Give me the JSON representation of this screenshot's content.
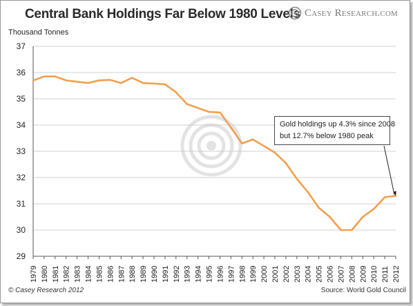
{
  "header": {
    "title": "Central Bank Holdings Far Below 1980 Levels",
    "brand": "Casey Research.com"
  },
  "footer": {
    "copyright": "© Casey Research 2012",
    "source": "Source: World Gold Council"
  },
  "colors": {
    "line": "#f0a050",
    "grid": "#d0d0d0",
    "watermark": "#c8c8c8"
  },
  "icons": {
    "brand_logo": "spiral-target-icon",
    "watermark": "spiral-target-icon"
  },
  "chart_data": {
    "type": "line",
    "title": "Central Bank Holdings Far Below 1980 Levels",
    "ylabel": "Thousand Tonnes",
    "xlabel": "",
    "ylim": [
      29,
      37
    ],
    "yticks": [
      29,
      30,
      31,
      32,
      33,
      34,
      35,
      36,
      37
    ],
    "grid": true,
    "x": [
      "1979",
      "1980",
      "1981",
      "1982",
      "1983",
      "1984",
      "1985",
      "1986",
      "1987",
      "1988",
      "1989",
      "1990",
      "1991",
      "1992",
      "1993",
      "1994",
      "1995",
      "1996",
      "1997",
      "1998",
      "1999",
      "2000",
      "2001",
      "2002",
      "2003",
      "2004",
      "2005",
      "2006",
      "2007",
      "2008",
      "2009",
      "2010",
      "2011",
      "2012"
    ],
    "series": [
      {
        "values": [
          35.7,
          35.85,
          35.85,
          35.7,
          35.65,
          35.6,
          35.7,
          35.72,
          35.6,
          35.8,
          35.6,
          35.58,
          35.55,
          35.25,
          34.8,
          34.65,
          34.5,
          34.48,
          33.9,
          33.3,
          33.45,
          33.2,
          32.95,
          32.55,
          31.95,
          31.45,
          30.85,
          30.5,
          30.0,
          30.0,
          30.5,
          30.8,
          31.25,
          31.3
        ]
      }
    ],
    "annotations": [
      {
        "lines": [
          "Gold holdings up 4.3% since 2008",
          "but 12.7% below 1980 peak"
        ],
        "points_to": {
          "x": "2012",
          "y": 31.3
        }
      }
    ]
  }
}
